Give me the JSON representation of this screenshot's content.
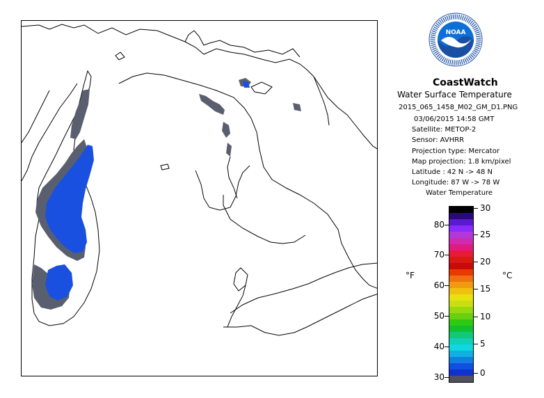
{
  "header": {
    "title": "CoastWatch",
    "subtitle": "Water Surface Temperature",
    "filename": "2015_065_1458_M02_GM_D1.PNG"
  },
  "info": {
    "datetime": "03/06/2015    14:58 GMT",
    "satellite": "Satellite: METOP-2",
    "sensor": "Sensor: AVHRR",
    "projection_type": "Projection type:  Mercator",
    "map_projection": "Map projection: 1.8 km/pixel",
    "latitude": "Latitude : 42 N  -> 48 N",
    "longitude": "Longitude: 87 W  -> 78 W"
  },
  "logo": {
    "label": "NOAA",
    "ring_text": "NATIONAL OCEANIC AND ATMOSPHERIC ADMINISTRATION · U.S. DEPARTMENT OF COMMERCE",
    "colors": {
      "outer": "#1a4fa3",
      "inner": "#0e6fd6",
      "bird": "#ffffff"
    }
  },
  "legend": {
    "title": "Water Temperature",
    "unit_f": "°F",
    "unit_c": "°C",
    "ticks_f": [
      "80",
      "70",
      "60",
      "50",
      "40",
      "30"
    ],
    "ticks_c": [
      "30",
      "25",
      "20",
      "15",
      "10",
      "5",
      "0"
    ],
    "colors": [
      "#000000",
      "#2a0a7a",
      "#5a1ad0",
      "#8a2aff",
      "#b03ad8",
      "#d02ab0",
      "#e01a80",
      "#e81a3a",
      "#d81a10",
      "#c80a0a",
      "#e83a00",
      "#f07010",
      "#f09a10",
      "#f0c010",
      "#e8e010",
      "#c8e010",
      "#98d810",
      "#68d010",
      "#30c810",
      "#10c030",
      "#10c878",
      "#10d0b8",
      "#10d8e0",
      "#10b0e0",
      "#1080e0",
      "#1050e0",
      "#1030d0",
      "#505060"
    ]
  },
  "map": {
    "land_color": "#ffffff",
    "water_cloud_color": "#5a5f70",
    "ice_cold_color": "#1a50e0",
    "cold_color": "#2a70f0"
  }
}
